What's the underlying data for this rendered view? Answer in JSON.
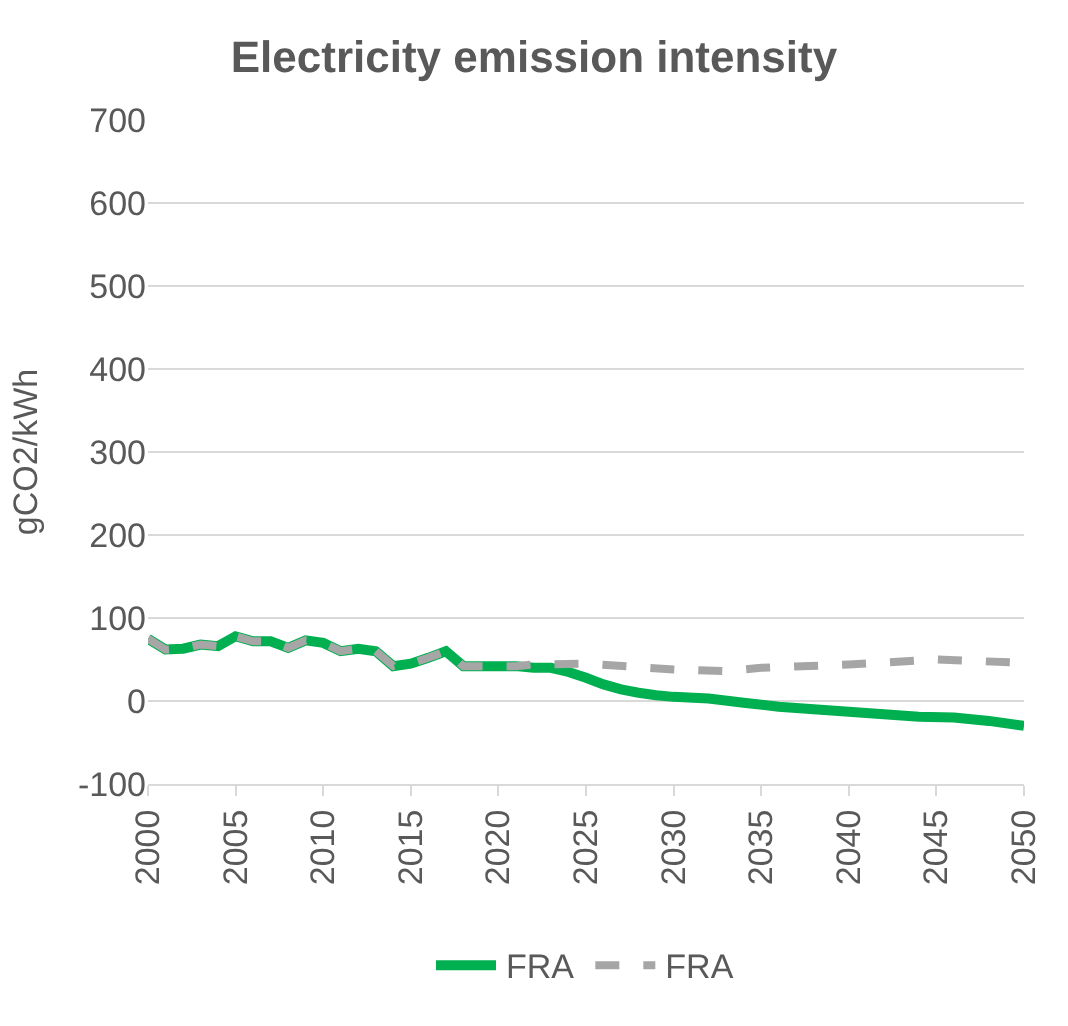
{
  "chart_data": {
    "type": "line",
    "title": "Electricity emission intensity",
    "ylabel": "gCO2/kWh",
    "ylim": [
      -100,
      700
    ],
    "yticks": [
      -100,
      0,
      100,
      200,
      300,
      400,
      500,
      600,
      700
    ],
    "xlim": [
      2000,
      2050
    ],
    "xticks": [
      2000,
      2005,
      2010,
      2015,
      2020,
      2025,
      2030,
      2035,
      2040,
      2045,
      2050
    ],
    "grid": "y",
    "legend": "bottom",
    "series": [
      {
        "name": "FRA",
        "color": "#00b050",
        "line_style": "solid",
        "x": [
          2000,
          2001,
          2002,
          2003,
          2004,
          2005,
          2006,
          2007,
          2008,
          2009,
          2010,
          2011,
          2012,
          2013,
          2014,
          2015,
          2016,
          2017,
          2018,
          2019,
          2020,
          2021,
          2022,
          2023,
          2024,
          2025,
          2026,
          2027,
          2028,
          2029,
          2030,
          2032,
          2034,
          2036,
          2038,
          2040,
          2042,
          2044,
          2046,
          2048,
          2050
        ],
        "values": [
          75,
          62,
          63,
          68,
          66,
          78,
          72,
          72,
          64,
          73,
          70,
          60,
          63,
          60,
          42,
          45,
          52,
          60,
          42,
          42,
          42,
          42,
          40,
          40,
          35,
          28,
          20,
          14,
          10,
          7,
          5,
          3,
          -2,
          -7,
          -10,
          -13,
          -16,
          -19,
          -20,
          -24,
          -30
        ]
      },
      {
        "name": "FRA",
        "color": "#a6a6a6",
        "line_style": "dashed",
        "x": [
          2000,
          2001,
          2002,
          2003,
          2004,
          2005,
          2006,
          2007,
          2008,
          2009,
          2010,
          2011,
          2012,
          2013,
          2014,
          2015,
          2016,
          2017,
          2018,
          2019,
          2020,
          2021,
          2022,
          2025,
          2030,
          2033,
          2035,
          2040,
          2045,
          2050
        ],
        "values": [
          75,
          62,
          63,
          68,
          66,
          78,
          72,
          72,
          64,
          73,
          70,
          60,
          63,
          60,
          42,
          45,
          52,
          60,
          42,
          42,
          42,
          42,
          44,
          45,
          38,
          36,
          40,
          44,
          50,
          46
        ]
      }
    ]
  }
}
